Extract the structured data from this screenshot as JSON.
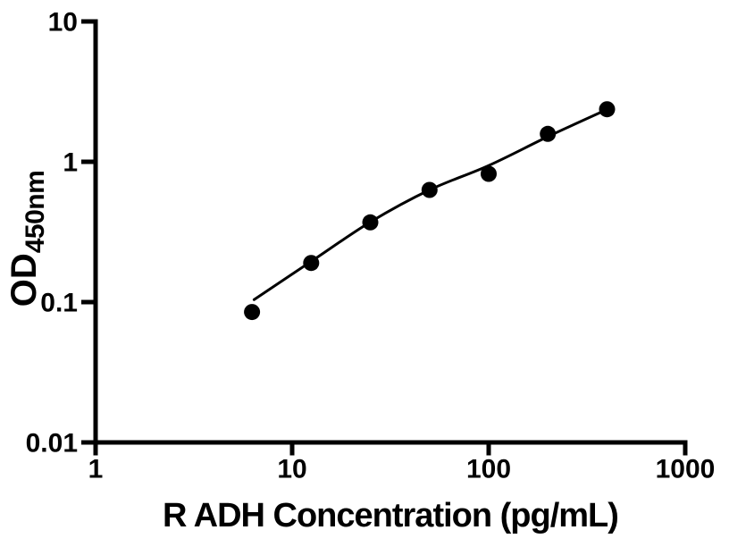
{
  "chart_data": {
    "type": "scatter",
    "title": "",
    "xlabel": "R ADH Concentration (pg/mL)",
    "ylabel_main": "OD",
    "ylabel_sub": "450nm",
    "x_scale": "log",
    "y_scale": "log",
    "xlim": [
      1,
      1000
    ],
    "ylim": [
      0.01,
      10
    ],
    "grid": false,
    "legend": "none",
    "x_ticks": [
      {
        "value": 1,
        "label": "1"
      },
      {
        "value": 10,
        "label": "10"
      },
      {
        "value": 100,
        "label": "100"
      },
      {
        "value": 1000,
        "label": "1000"
      }
    ],
    "y_ticks": [
      {
        "value": 10,
        "label": "10"
      },
      {
        "value": 1,
        "label": "1"
      },
      {
        "value": 0.1,
        "label": "0.1"
      },
      {
        "value": 0.01,
        "label": "0.01"
      }
    ],
    "series": [
      {
        "name": "standard-points",
        "type": "scatter",
        "marker": "filled-circle",
        "x": [
          6.25,
          12.5,
          25,
          50,
          100,
          200,
          400
        ],
        "y": [
          0.085,
          0.19,
          0.37,
          0.63,
          0.82,
          1.58,
          2.37
        ]
      },
      {
        "name": "fitted-curve",
        "type": "line",
        "x": [
          6.4,
          12.5,
          25,
          50,
          100,
          200,
          400
        ],
        "y": [
          0.104,
          0.195,
          0.372,
          0.63,
          0.94,
          1.51,
          2.36
        ]
      }
    ],
    "colors": {
      "marker": "#000000",
      "line": "#000000",
      "axis": "#000000",
      "background": "#ffffff",
      "text": "#000000"
    }
  }
}
